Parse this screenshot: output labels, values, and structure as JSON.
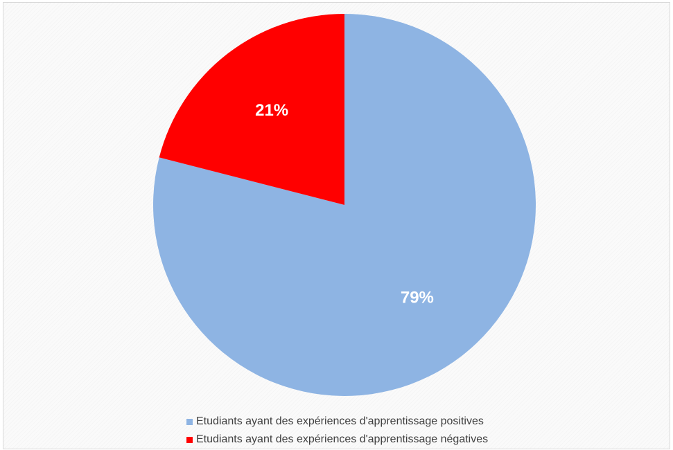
{
  "chart_data": {
    "type": "pie",
    "title": "",
    "categories": [
      "Etudiants ayant des expériences d'apprentissage positives",
      "Etudiants ayant des expériences d'apprentissage négatives"
    ],
    "values": [
      79,
      21
    ],
    "value_labels": [
      "79%",
      "21%"
    ],
    "colors": [
      "#8eb4e3",
      "#ff0000"
    ],
    "start_angle_deg": 0,
    "direction": "clockwise",
    "legend_position": "bottom"
  },
  "legend": {
    "items": [
      {
        "label": "Etudiants ayant des expériences d'apprentissage positives",
        "color": "#8eb4e3"
      },
      {
        "label": "Etudiants ayant des expériences d'apprentissage négatives",
        "color": "#ff0000"
      }
    ]
  }
}
